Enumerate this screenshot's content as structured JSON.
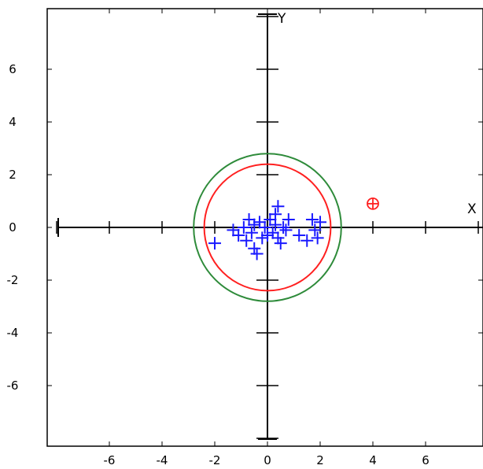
{
  "chart_data": {
    "type": "scatter",
    "title": "",
    "xlabel": "X",
    "ylabel": "Y",
    "xlim": [
      -8.1,
      8.1
    ],
    "ylim": [
      -8.1,
      8.1
    ],
    "x_ticks": [
      -6,
      -4,
      -2,
      0,
      2,
      4,
      6
    ],
    "y_ticks": [
      -6,
      -4,
      -2,
      0,
      2,
      4,
      6
    ],
    "x_tick_labels": [
      "-6",
      "-4",
      "-2",
      "0",
      "2",
      "4",
      "6"
    ],
    "y_tick_labels": [
      "-6",
      "-4",
      "-2",
      "0",
      "2",
      "4",
      "6"
    ],
    "axis_minor_ticks": [
      -8,
      -6,
      -4,
      -2,
      2,
      4,
      6,
      8
    ],
    "grid": false,
    "colors": {
      "points": "#1a1aff",
      "inner_circle": "#ff2020",
      "outer_circle": "#2e8b3a",
      "marker": "#ff2020",
      "axes": "#000000"
    },
    "circles": [
      {
        "name": "outer",
        "center": [
          0,
          0
        ],
        "radius": 2.8,
        "color": "#2e8b3a"
      },
      {
        "name": "inner",
        "center": [
          0,
          0
        ],
        "radius": 2.4,
        "color": "#ff2020"
      }
    ],
    "marker_point": {
      "x": 4.0,
      "y": 0.9,
      "symbol": "circle-plus",
      "color": "#ff2020"
    },
    "series": [
      {
        "symbol": "plus",
        "color": "#1a1aff",
        "points": [
          [
            -2.0,
            -0.6
          ],
          [
            -1.3,
            -0.1
          ],
          [
            -1.1,
            -0.3
          ],
          [
            -0.9,
            0.0
          ],
          [
            -0.8,
            -0.5
          ],
          [
            -0.7,
            0.3
          ],
          [
            -0.6,
            -0.2
          ],
          [
            -0.5,
            -0.8
          ],
          [
            -0.5,
            0.1
          ],
          [
            -0.4,
            -1.0
          ],
          [
            -0.3,
            0.2
          ],
          [
            -0.2,
            -0.4
          ],
          [
            -0.1,
            0.0
          ],
          [
            0.0,
            -0.3
          ],
          [
            0.1,
            0.3
          ],
          [
            0.2,
            -0.2
          ],
          [
            0.3,
            0.1
          ],
          [
            0.3,
            0.5
          ],
          [
            0.4,
            -0.4
          ],
          [
            0.4,
            0.8
          ],
          [
            0.5,
            -0.6
          ],
          [
            0.6,
            0.0
          ],
          [
            0.7,
            -0.1
          ],
          [
            0.8,
            0.3
          ],
          [
            1.2,
            -0.3
          ],
          [
            1.5,
            -0.5
          ],
          [
            1.7,
            0.3
          ],
          [
            1.8,
            -0.1
          ],
          [
            1.9,
            -0.4
          ],
          [
            2.0,
            0.2
          ]
        ]
      }
    ]
  }
}
